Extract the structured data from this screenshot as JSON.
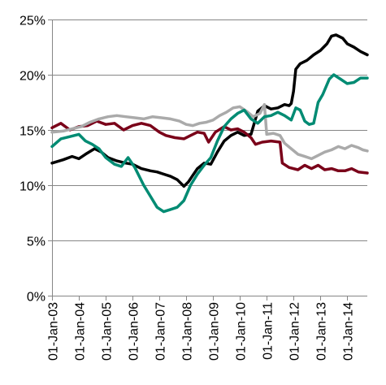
{
  "chart_data": {
    "type": "line",
    "title": "",
    "xlabel": "",
    "ylabel": "",
    "x_start": "2003-01-01",
    "x_end": "2014-10-01",
    "ylim": [
      0,
      25
    ],
    "y_ticks": [
      0,
      5,
      10,
      15,
      20,
      25
    ],
    "y_tick_labels": [
      "0%",
      "5%",
      "10%",
      "15%",
      "20%",
      "25%"
    ],
    "x_ticks": [
      "2003-01-01",
      "2004-01-01",
      "2005-01-01",
      "2006-01-01",
      "2007-01-01",
      "2008-01-01",
      "2009-01-01",
      "2010-01-01",
      "2011-01-01",
      "2012-01-01",
      "2013-01-01",
      "2014-01-01"
    ],
    "x_tick_labels": [
      "01-Jan-03",
      "01-Jan-04",
      "01-Jan-05",
      "01-Jan-06",
      "01-Jan-07",
      "01-Jan-08",
      "01-Jan-09",
      "01-Jan-10",
      "01-Jan-11",
      "01-Jan-12",
      "01-Jan-13",
      "01-Jan-14"
    ],
    "grid": "horizontal",
    "legend": "none",
    "series": [
      {
        "color": "#000000",
        "points": [
          [
            "2003-01-01",
            12.0
          ],
          [
            "2003-06-01",
            12.3
          ],
          [
            "2003-10-01",
            12.6
          ],
          [
            "2004-01-01",
            12.4
          ],
          [
            "2004-04-01",
            12.8
          ],
          [
            "2004-08-01",
            13.3
          ],
          [
            "2004-11-01",
            13.0
          ],
          [
            "2005-02-01",
            12.5
          ],
          [
            "2005-06-01",
            12.2
          ],
          [
            "2005-10-01",
            12.0
          ],
          [
            "2006-01-01",
            11.9
          ],
          [
            "2006-05-01",
            11.5
          ],
          [
            "2006-09-01",
            11.3
          ],
          [
            "2006-12-01",
            11.2
          ],
          [
            "2007-03-01",
            11.0
          ],
          [
            "2007-06-01",
            10.8
          ],
          [
            "2007-09-01",
            10.5
          ],
          [
            "2007-12-01",
            9.9
          ],
          [
            "2008-02-01",
            10.3
          ],
          [
            "2008-04-01",
            10.9
          ],
          [
            "2008-06-01",
            11.5
          ],
          [
            "2008-09-01",
            12.0
          ],
          [
            "2008-12-01",
            11.9
          ],
          [
            "2009-03-01",
            13.0
          ],
          [
            "2009-06-01",
            14.0
          ],
          [
            "2009-09-01",
            14.5
          ],
          [
            "2009-12-01",
            14.8
          ],
          [
            "2010-03-01",
            14.5
          ],
          [
            "2010-06-01",
            14.6
          ],
          [
            "2010-09-01",
            16.7
          ],
          [
            "2010-12-01",
            17.2
          ],
          [
            "2011-03-01",
            16.9
          ],
          [
            "2011-06-01",
            17.0
          ],
          [
            "2011-09-01",
            17.3
          ],
          [
            "2011-11-01",
            17.2
          ],
          [
            "2011-12-01",
            17.4
          ],
          [
            "2012-01-01",
            18.5
          ],
          [
            "2012-02-01",
            20.5
          ],
          [
            "2012-04-01",
            21.0
          ],
          [
            "2012-07-01",
            21.3
          ],
          [
            "2012-10-01",
            21.8
          ],
          [
            "2013-01-01",
            22.2
          ],
          [
            "2013-04-01",
            22.8
          ],
          [
            "2013-06-01",
            23.5
          ],
          [
            "2013-08-01",
            23.6
          ],
          [
            "2013-11-01",
            23.3
          ],
          [
            "2014-01-01",
            22.8
          ],
          [
            "2014-04-01",
            22.5
          ],
          [
            "2014-07-01",
            22.1
          ],
          [
            "2014-10-01",
            21.8
          ]
        ]
      },
      {
        "color": "#7a0019",
        "points": [
          [
            "2003-01-01",
            15.2
          ],
          [
            "2003-05-01",
            15.6
          ],
          [
            "2003-09-01",
            15.0
          ],
          [
            "2004-01-01",
            15.3
          ],
          [
            "2004-05-01",
            15.4
          ],
          [
            "2004-09-01",
            15.8
          ],
          [
            "2005-01-01",
            15.5
          ],
          [
            "2005-05-01",
            15.6
          ],
          [
            "2005-09-01",
            15.0
          ],
          [
            "2006-01-01",
            15.4
          ],
          [
            "2006-05-01",
            15.6
          ],
          [
            "2006-09-01",
            15.4
          ],
          [
            "2007-01-01",
            14.8
          ],
          [
            "2007-04-01",
            14.5
          ],
          [
            "2007-08-01",
            14.3
          ],
          [
            "2007-12-01",
            14.2
          ],
          [
            "2008-03-01",
            14.5
          ],
          [
            "2008-06-01",
            14.8
          ],
          [
            "2008-09-01",
            14.7
          ],
          [
            "2008-11-01",
            13.9
          ],
          [
            "2009-02-01",
            14.8
          ],
          [
            "2009-06-01",
            15.3
          ],
          [
            "2009-09-01",
            15.0
          ],
          [
            "2009-12-01",
            15.1
          ],
          [
            "2010-03-01",
            14.8
          ],
          [
            "2010-06-01",
            14.3
          ],
          [
            "2010-08-01",
            13.7
          ],
          [
            "2010-11-01",
            13.9
          ],
          [
            "2011-03-01",
            14.0
          ],
          [
            "2011-07-01",
            13.9
          ],
          [
            "2011-08-01",
            12.0
          ],
          [
            "2011-11-01",
            11.6
          ],
          [
            "2012-03-01",
            11.4
          ],
          [
            "2012-06-01",
            11.8
          ],
          [
            "2012-09-01",
            11.5
          ],
          [
            "2012-12-01",
            11.8
          ],
          [
            "2013-03-01",
            11.4
          ],
          [
            "2013-06-01",
            11.5
          ],
          [
            "2013-09-01",
            11.3
          ],
          [
            "2013-12-01",
            11.3
          ],
          [
            "2014-03-01",
            11.5
          ],
          [
            "2014-06-01",
            11.2
          ],
          [
            "2014-10-01",
            11.1
          ]
        ]
      },
      {
        "color": "#aaaaaa",
        "points": [
          [
            "2003-01-01",
            14.8
          ],
          [
            "2003-06-01",
            14.9
          ],
          [
            "2003-10-01",
            15.1
          ],
          [
            "2004-02-01",
            15.3
          ],
          [
            "2004-06-01",
            15.7
          ],
          [
            "2004-10-01",
            16.0
          ],
          [
            "2005-02-01",
            16.2
          ],
          [
            "2005-06-01",
            16.3
          ],
          [
            "2005-10-01",
            16.2
          ],
          [
            "2006-02-01",
            16.1
          ],
          [
            "2006-06-01",
            16.0
          ],
          [
            "2006-10-01",
            16.2
          ],
          [
            "2007-02-01",
            16.1
          ],
          [
            "2007-06-01",
            16.0
          ],
          [
            "2007-10-01",
            15.8
          ],
          [
            "2008-01-01",
            15.5
          ],
          [
            "2008-04-01",
            15.4
          ],
          [
            "2008-07-01",
            15.6
          ],
          [
            "2008-10-01",
            15.7
          ],
          [
            "2009-01-01",
            15.9
          ],
          [
            "2009-04-01",
            16.3
          ],
          [
            "2009-07-01",
            16.6
          ],
          [
            "2009-10-01",
            17.0
          ],
          [
            "2010-01-01",
            17.1
          ],
          [
            "2010-04-01",
            16.7
          ],
          [
            "2010-07-01",
            16.2
          ],
          [
            "2010-10-01",
            16.5
          ],
          [
            "2010-12-01",
            17.3
          ],
          [
            "2011-01-01",
            14.6
          ],
          [
            "2011-04-01",
            14.7
          ],
          [
            "2011-07-01",
            14.5
          ],
          [
            "2011-09-01",
            13.8
          ],
          [
            "2011-12-01",
            13.3
          ],
          [
            "2012-03-01",
            12.8
          ],
          [
            "2012-06-01",
            12.6
          ],
          [
            "2012-09-01",
            12.4
          ],
          [
            "2012-12-01",
            12.7
          ],
          [
            "2013-03-01",
            13.0
          ],
          [
            "2013-06-01",
            13.2
          ],
          [
            "2013-09-01",
            13.5
          ],
          [
            "2013-12-01",
            13.3
          ],
          [
            "2014-03-01",
            13.6
          ],
          [
            "2014-06-01",
            13.4
          ],
          [
            "2014-08-01",
            13.2
          ],
          [
            "2014-10-01",
            13.1
          ]
        ]
      },
      {
        "color": "#008b73",
        "points": [
          [
            "2003-01-01",
            13.5
          ],
          [
            "2003-05-01",
            14.2
          ],
          [
            "2003-09-01",
            14.4
          ],
          [
            "2004-01-01",
            14.6
          ],
          [
            "2004-04-01",
            14.0
          ],
          [
            "2004-07-01",
            13.7
          ],
          [
            "2004-10-01",
            13.3
          ],
          [
            "2005-01-01",
            12.5
          ],
          [
            "2005-05-01",
            11.9
          ],
          [
            "2005-08-01",
            11.7
          ],
          [
            "2005-11-01",
            12.5
          ],
          [
            "2006-02-01",
            11.6
          ],
          [
            "2006-06-01",
            10.0
          ],
          [
            "2006-09-01",
            9.0
          ],
          [
            "2006-12-01",
            8.0
          ],
          [
            "2007-03-01",
            7.6
          ],
          [
            "2007-06-01",
            7.8
          ],
          [
            "2007-09-01",
            8.0
          ],
          [
            "2007-12-01",
            8.6
          ],
          [
            "2008-03-01",
            10.0
          ],
          [
            "2008-06-01",
            11.0
          ],
          [
            "2008-09-01",
            11.8
          ],
          [
            "2008-12-01",
            12.5
          ],
          [
            "2009-03-01",
            14.0
          ],
          [
            "2009-06-01",
            15.3
          ],
          [
            "2009-09-01",
            16.0
          ],
          [
            "2009-12-01",
            16.5
          ],
          [
            "2010-03-01",
            16.8
          ],
          [
            "2010-06-01",
            16.0
          ],
          [
            "2010-09-01",
            15.6
          ],
          [
            "2010-12-01",
            16.2
          ],
          [
            "2011-03-01",
            16.3
          ],
          [
            "2011-06-01",
            16.6
          ],
          [
            "2011-09-01",
            16.3
          ],
          [
            "2011-12-01",
            15.9
          ],
          [
            "2012-02-01",
            17.0
          ],
          [
            "2012-04-01",
            16.8
          ],
          [
            "2012-06-01",
            15.8
          ],
          [
            "2012-08-01",
            15.5
          ],
          [
            "2012-10-01",
            15.6
          ],
          [
            "2012-12-01",
            17.5
          ],
          [
            "2013-02-01",
            18.2
          ],
          [
            "2013-05-01",
            19.6
          ],
          [
            "2013-07-01",
            20.0
          ],
          [
            "2013-10-01",
            19.6
          ],
          [
            "2014-01-01",
            19.2
          ],
          [
            "2014-04-01",
            19.3
          ],
          [
            "2014-07-01",
            19.7
          ],
          [
            "2014-10-01",
            19.7
          ]
        ]
      }
    ]
  }
}
